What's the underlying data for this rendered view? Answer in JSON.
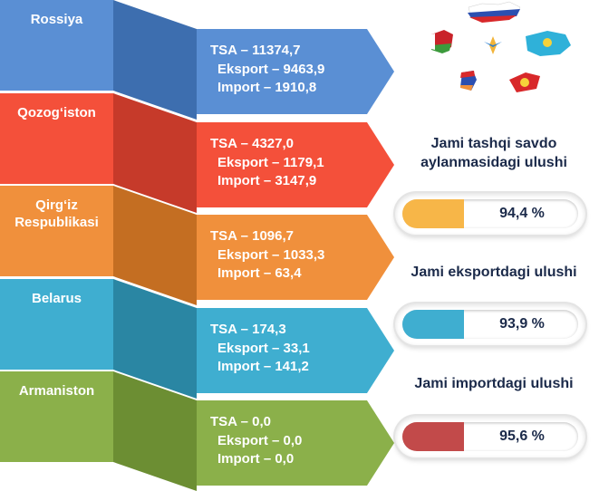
{
  "countries": [
    {
      "name": "Rossiya",
      "lines": [
        "TSA – 11374,7",
        "Eksport – 9463,9",
        "Import – 1910,8"
      ],
      "color": "#5a8fd4",
      "dark": "#3d6eaf"
    },
    {
      "name": "Qozog‘iston",
      "lines": [
        "TSA – 4327,0",
        "Eksport – 1179,1",
        "Import – 3147,9"
      ],
      "color": "#f4503a",
      "dark": "#c63a2a"
    },
    {
      "name": "Qirg‘iz\nRespublikasi",
      "lines": [
        "TSA – 1096,7",
        "Eksport – 1033,3",
        "Import – 63,4"
      ],
      "color": "#f0903c",
      "dark": "#c46e22"
    },
    {
      "name": "Belarus",
      "lines": [
        "TSA – 174,3",
        "Eksport – 33,1",
        "Import – 141,2"
      ],
      "color": "#3faed0",
      "dark": "#2a86a3"
    },
    {
      "name": "Armaniston",
      "lines": [
        "TSA – 0,0",
        "Eksport – 0,0",
        "Import – 0,0"
      ],
      "color": "#8bb04a",
      "dark": "#6c8e33"
    }
  ],
  "shares": [
    {
      "title": "Jami tashqi savdo\naylanmasidagi ulushi",
      "value": "94,4 %",
      "fill": "#f7b648"
    },
    {
      "title": "Jami eksportdagi ulushi",
      "value": "93,9 %",
      "fill": "#3faed0"
    },
    {
      "title": "Jami importdagi ulushi",
      "value": "95,6 %",
      "fill": "#c24a4a"
    }
  ]
}
